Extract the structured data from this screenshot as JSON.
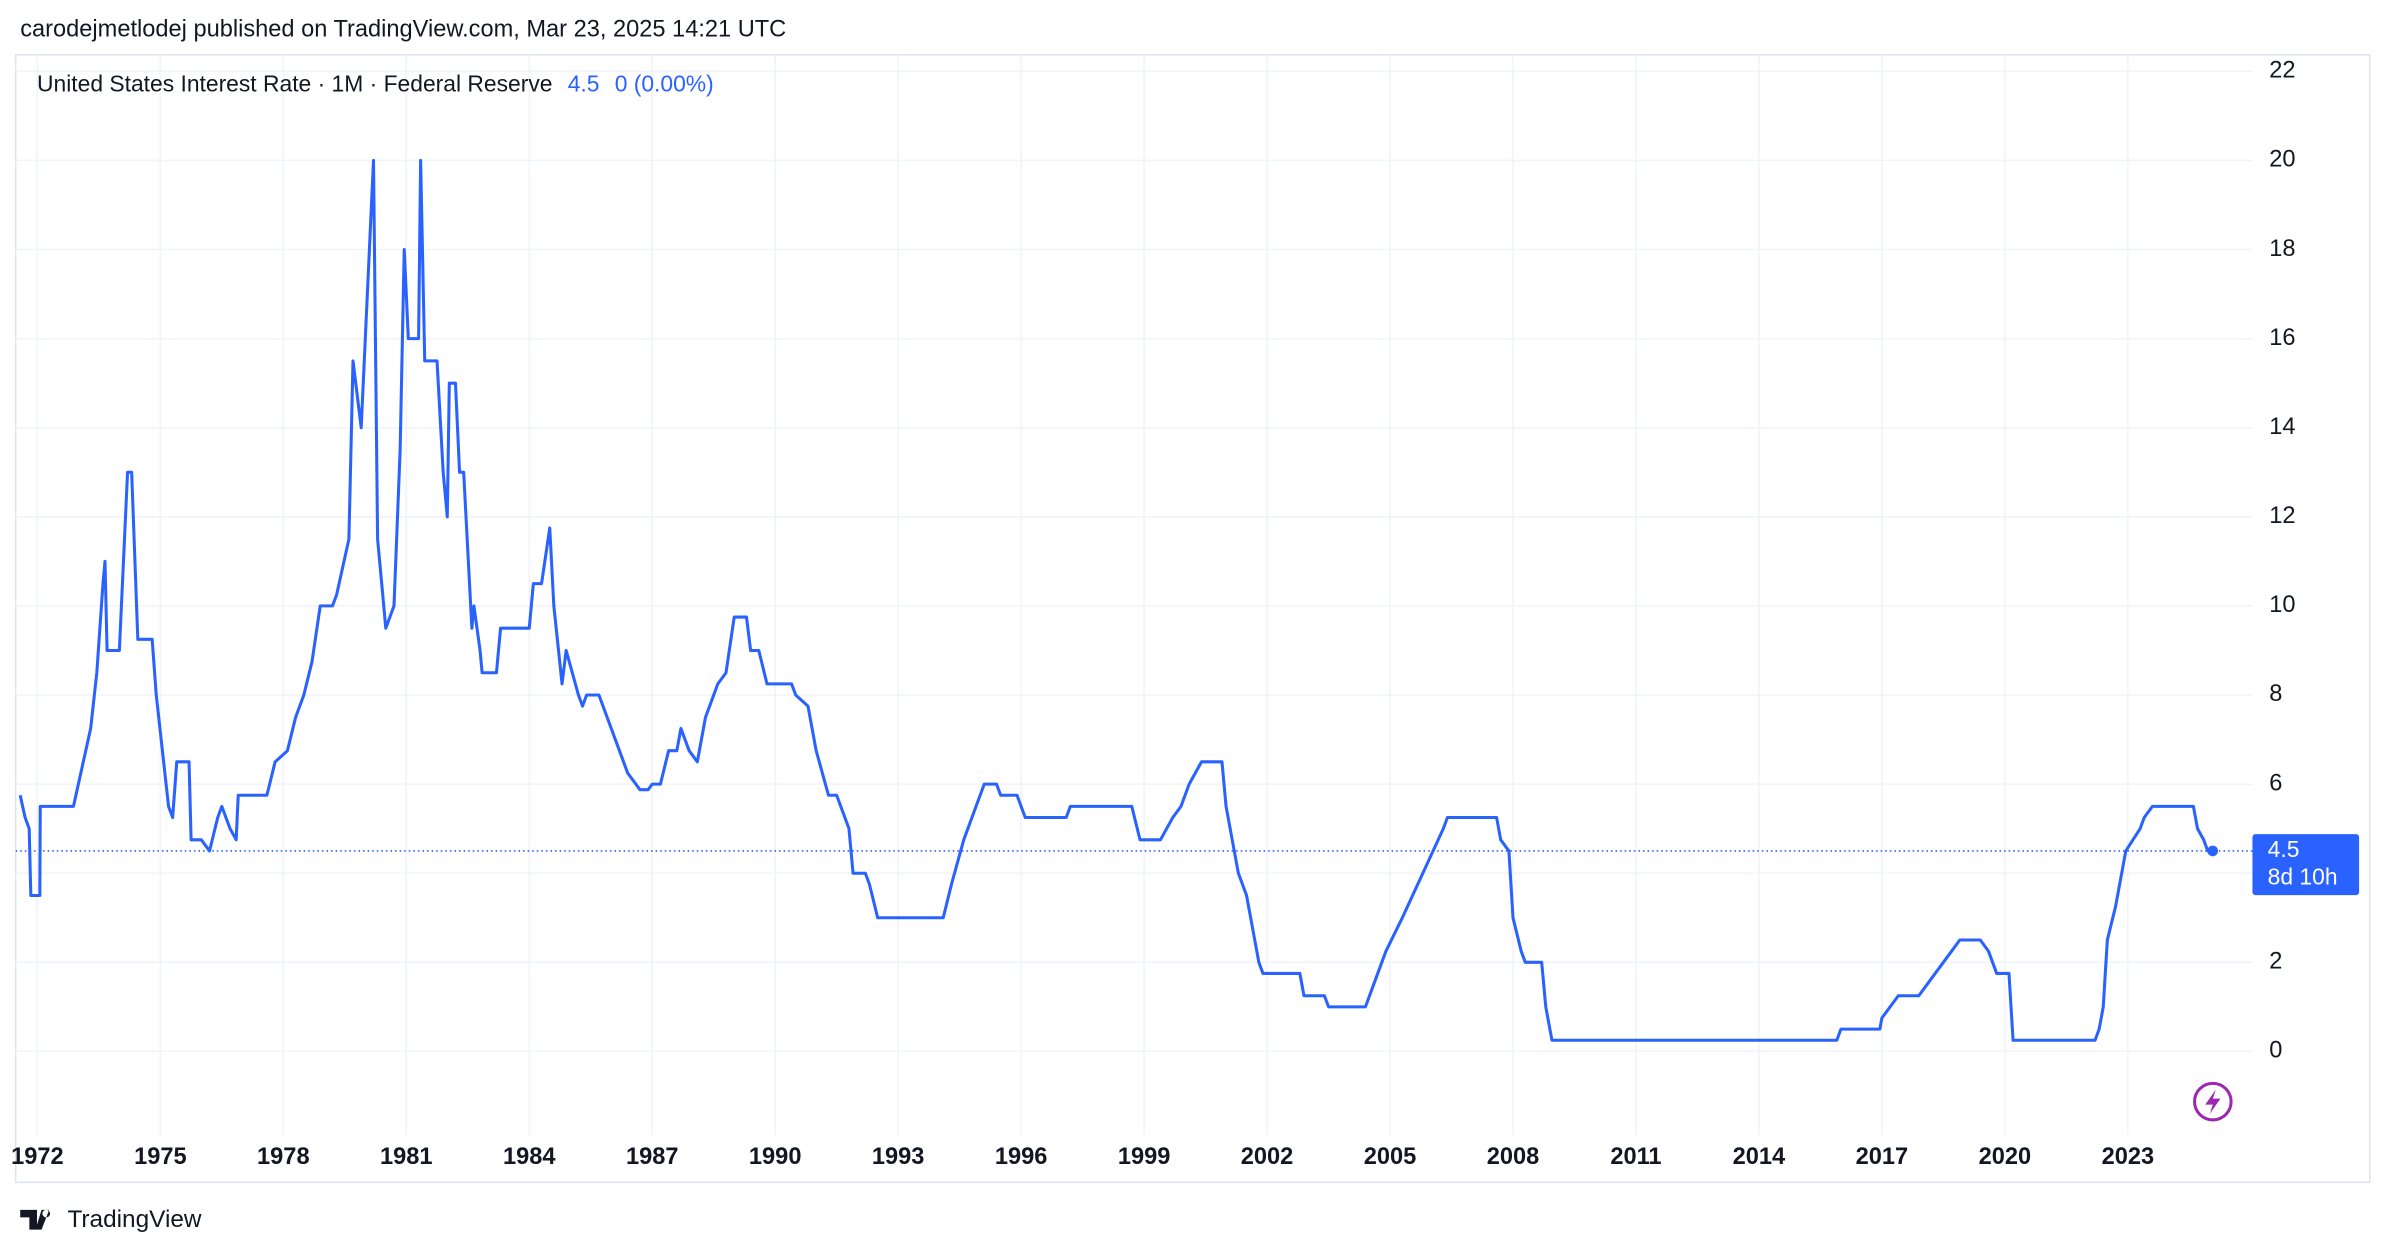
{
  "header": {
    "published": "carodejmetlodej published on TradingView.com, Mar 23, 2025 14:21 UTC"
  },
  "footer": {
    "brand": "TradingView"
  },
  "chart_data": {
    "type": "line",
    "title": "United States Interest Rate · 1M · Federal Reserve",
    "last_price": 4.5,
    "change": "0 (0.00%)",
    "countdown": "8d 10h",
    "grid": true,
    "xlim": [
      1971.47,
      2026.04
    ],
    "xticks": [
      1972,
      1975,
      1978,
      1981,
      1984,
      1987,
      1990,
      1993,
      1996,
      1999,
      2002,
      2005,
      2008,
      2011,
      2014,
      2017,
      2020,
      2023
    ],
    "ylim": [
      -1.88,
      22.37
    ],
    "yticks": [
      0,
      2,
      4,
      6,
      8,
      10,
      12,
      14,
      16,
      18,
      20,
      22
    ],
    "x": [
      1971.58,
      1971.7,
      1971.8,
      1971.84,
      1972.06,
      1972.07,
      1972.88,
      1973.3,
      1973.45,
      1973.6,
      1973.65,
      1973.7,
      1974.0,
      1974.2,
      1974.3,
      1974.45,
      1974.8,
      1974.9,
      1975.2,
      1975.3,
      1975.4,
      1975.7,
      1975.75,
      1976.0,
      1976.2,
      1976.4,
      1976.5,
      1976.7,
      1976.85,
      1976.9,
      1977.6,
      1977.8,
      1978.1,
      1978.3,
      1978.5,
      1978.7,
      1978.9,
      1979.2,
      1979.3,
      1979.6,
      1979.7,
      1979.9,
      1980.2,
      1980.3,
      1980.5,
      1980.7,
      1980.85,
      1980.95,
      1981.05,
      1981.3,
      1981.35,
      1981.45,
      1981.75,
      1981.9,
      1982.0,
      1982.05,
      1982.2,
      1982.3,
      1982.4,
      1982.6,
      1982.65,
      1982.8,
      1982.85,
      1983.2,
      1983.3,
      1984.0,
      1984.1,
      1984.3,
      1984.5,
      1984.6,
      1984.8,
      1984.9,
      1985.2,
      1985.3,
      1985.4,
      1985.7,
      1985.8,
      1986.2,
      1986.4,
      1986.7,
      1986.9,
      1987.0,
      1987.2,
      1987.4,
      1987.6,
      1987.7,
      1987.9,
      1988.1,
      1988.3,
      1988.6,
      1988.8,
      1989.0,
      1989.3,
      1989.4,
      1989.6,
      1989.8,
      1990.4,
      1990.5,
      1990.8,
      1991.0,
      1991.3,
      1991.5,
      1991.8,
      1991.9,
      1992.2,
      1992.3,
      1992.5,
      1994.1,
      1994.3,
      1994.6,
      1994.9,
      1995.1,
      1995.4,
      1995.5,
      1995.9,
      1996.1,
      1997.1,
      1997.2,
      1998.7,
      1998.9,
      1999.4,
      1999.7,
      1999.9,
      2000.1,
      2000.4,
      2000.9,
      2001.0,
      2001.3,
      2001.5,
      2001.8,
      2001.9,
      2002.8,
      2002.9,
      2003.4,
      2003.5,
      2004.4,
      2004.6,
      2004.9,
      2005.3,
      2005.8,
      2006.3,
      2006.4,
      2007.6,
      2007.7,
      2007.9,
      2008.0,
      2008.2,
      2008.3,
      2008.7,
      2008.8,
      2008.95,
      2015.9,
      2016.0,
      2016.95,
      2017.0,
      2017.2,
      2017.4,
      2017.9,
      2018.1,
      2018.3,
      2018.5,
      2018.7,
      2018.9,
      2019.4,
      2019.6,
      2019.8,
      2020.1,
      2020.2,
      2022.2,
      2022.3,
      2022.4,
      2022.5,
      2022.7,
      2022.85,
      2022.95,
      2023.3,
      2023.4,
      2023.6,
      2024.6,
      2024.7,
      2024.85,
      2024.95,
      2025.07
    ],
    "series": [
      {
        "name": "United States Interest Rate",
        "color": "#2962ff",
        "values": [
          5.75,
          5.25,
          5.0,
          3.5,
          3.5,
          5.5,
          5.5,
          7.25,
          8.5,
          10.5,
          11,
          9,
          9,
          13,
          13,
          9.25,
          9.25,
          8,
          5.5,
          5.25,
          6.5,
          6.5,
          4.75,
          4.75,
          4.5,
          5.25,
          5.5,
          5.0,
          4.75,
          5.75,
          5.75,
          6.5,
          6.75,
          7.5,
          8,
          8.75,
          10,
          10,
          10.25,
          11.5,
          15.5,
          14,
          20,
          11.5,
          9.5,
          10,
          13.5,
          18,
          16,
          16,
          20,
          15.5,
          15.5,
          13,
          12,
          15,
          15,
          13,
          13,
          9.5,
          10,
          9,
          8.5,
          8.5,
          9.5,
          9.5,
          10.5,
          10.5,
          11.75,
          10,
          8.25,
          9,
          8,
          7.75,
          8,
          8,
          7.75,
          6.75,
          6.25,
          5.875,
          5.875,
          6,
          6,
          6.75,
          6.75,
          7.25,
          6.75,
          6.5,
          7.5,
          8.25,
          8.5,
          9.75,
          9.75,
          9,
          9,
          8.25,
          8.25,
          8,
          7.75,
          6.75,
          5.75,
          5.75,
          5,
          4,
          4,
          3.75,
          3,
          3,
          3.75,
          4.75,
          5.5,
          6,
          6,
          5.75,
          5.75,
          5.25,
          5.25,
          5.5,
          5.5,
          4.75,
          4.75,
          5.25,
          5.5,
          6,
          6.5,
          6.5,
          5.5,
          4,
          3.5,
          2,
          1.75,
          1.75,
          1.25,
          1.25,
          1.0,
          1.0,
          1.5,
          2.25,
          3,
          4,
          5,
          5.25,
          5.25,
          4.75,
          4.5,
          3,
          2.25,
          2,
          2,
          1,
          0.25,
          0.25,
          0.5,
          0.5,
          0.75,
          1,
          1.25,
          1.25,
          1.5,
          1.75,
          2,
          2.25,
          2.5,
          2.5,
          2.25,
          1.75,
          1.75,
          0.25,
          0.25,
          0.5,
          1,
          2.5,
          3.25,
          4,
          4.5,
          5,
          5.25,
          5.5,
          5.5,
          5,
          4.75,
          4.5,
          4.5
        ]
      }
    ]
  }
}
